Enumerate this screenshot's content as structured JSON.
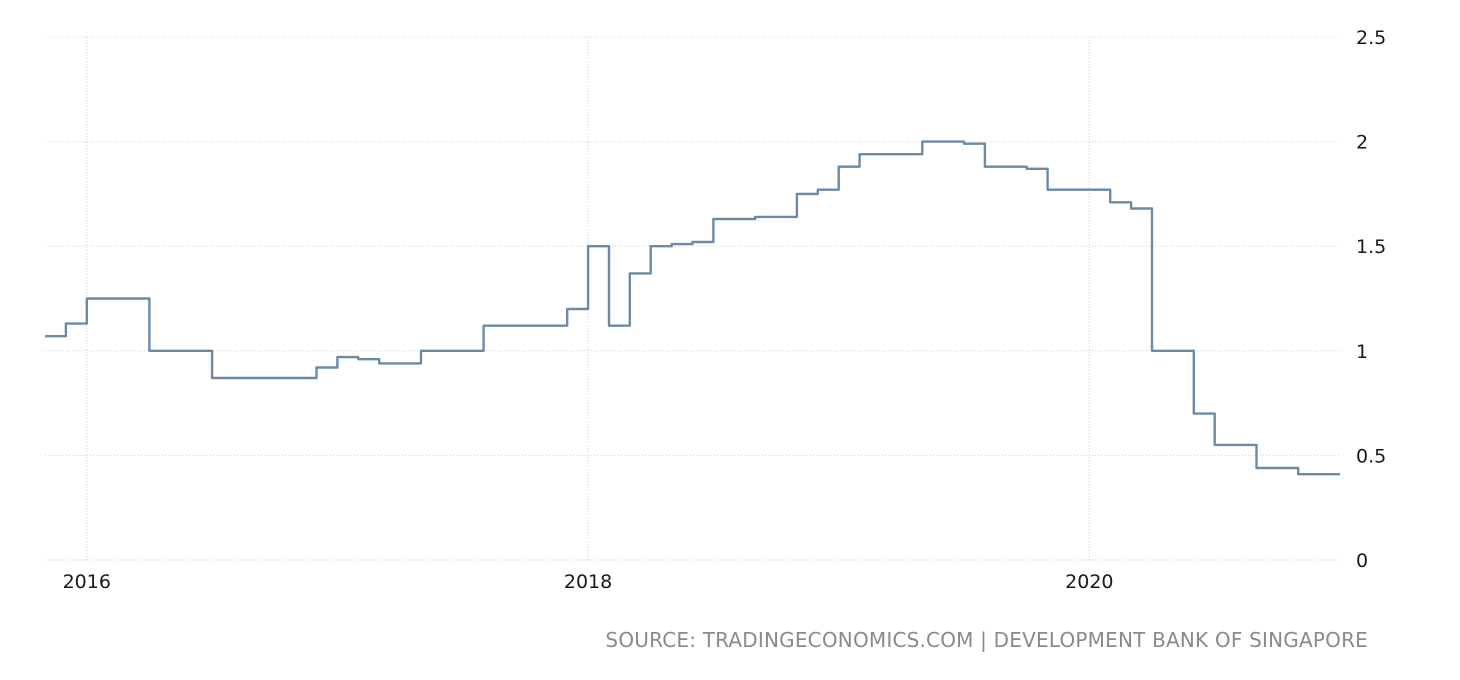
{
  "chart_data": {
    "type": "line",
    "x_ticks": [
      "2016",
      "2018",
      "2020"
    ],
    "y_ticks": [
      "0",
      "0.5",
      "1",
      "1.5",
      "2",
      "2.5"
    ],
    "ylim": [
      0,
      2.5
    ],
    "grid": true,
    "series": [
      {
        "color": "#6b8aa6",
        "x": [
          "2015-11",
          "2015-12",
          "2016-01",
          "2016-02",
          "2016-03",
          "2016-04",
          "2016-05",
          "2016-06",
          "2016-07",
          "2016-08",
          "2016-09",
          "2016-10",
          "2016-11",
          "2016-12",
          "2017-01",
          "2017-02",
          "2017-03",
          "2017-04",
          "2017-05",
          "2017-06",
          "2017-07",
          "2017-08",
          "2017-09",
          "2017-10",
          "2017-11",
          "2017-12",
          "2018-01",
          "2018-02",
          "2018-03",
          "2018-04",
          "2018-05",
          "2018-06",
          "2018-07",
          "2018-08",
          "2018-09",
          "2018-10",
          "2018-11",
          "2018-12",
          "2019-01",
          "2019-02",
          "2019-03",
          "2019-04",
          "2019-05",
          "2019-06",
          "2019-07",
          "2019-08",
          "2019-09",
          "2019-10",
          "2019-11",
          "2019-12",
          "2020-01",
          "2020-02",
          "2020-03",
          "2020-04",
          "2020-05",
          "2020-06",
          "2020-07",
          "2020-08",
          "2020-09",
          "2020-10",
          "2020-11",
          "2020-12"
        ],
        "values": [
          1.07,
          1.13,
          1.25,
          1.25,
          1.25,
          1.0,
          1.0,
          1.0,
          0.87,
          0.87,
          0.87,
          0.87,
          0.87,
          0.92,
          0.97,
          0.96,
          0.94,
          0.94,
          1.0,
          1.0,
          1.0,
          1.12,
          1.12,
          1.12,
          1.12,
          1.2,
          1.5,
          1.12,
          1.37,
          1.5,
          1.51,
          1.52,
          1.63,
          1.63,
          1.64,
          1.64,
          1.75,
          1.77,
          1.88,
          1.94,
          1.94,
          1.94,
          2.0,
          2.0,
          1.99,
          1.88,
          1.88,
          1.87,
          1.77,
          1.77,
          1.77,
          1.71,
          1.68,
          1.0,
          1.0,
          0.7,
          0.55,
          0.55,
          0.44,
          0.44,
          0.41,
          0.41
        ]
      }
    ]
  },
  "source_text": "SOURCE: TRADINGECONOMICS.COM | DEVELOPMENT BANK OF SINGAPORE"
}
